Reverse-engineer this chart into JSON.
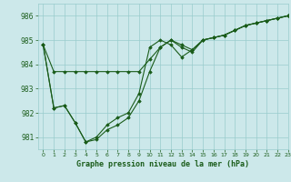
{
  "title": "Graphe pression niveau de la mer (hPa)",
  "background_color": "#cce8ea",
  "grid_color": "#99cccc",
  "line_color": "#1a5c1a",
  "marker_color": "#1a5c1a",
  "xlim": [
    -0.5,
    23
  ],
  "ylim": [
    980.5,
    986.5
  ],
  "yticks": [
    981,
    982,
    983,
    984,
    985,
    986
  ],
  "xticks": [
    0,
    1,
    2,
    3,
    4,
    5,
    6,
    7,
    8,
    9,
    10,
    11,
    12,
    13,
    14,
    15,
    16,
    17,
    18,
    19,
    20,
    21,
    22,
    23
  ],
  "series1_x": [
    0,
    1,
    2,
    3,
    4,
    5,
    6,
    7,
    8,
    9,
    10,
    11,
    12,
    13,
    14,
    15,
    16,
    17,
    18,
    19,
    20,
    21,
    22,
    23
  ],
  "series1_y": [
    984.8,
    983.7,
    983.7,
    983.7,
    983.7,
    983.7,
    983.7,
    983.7,
    983.7,
    983.7,
    984.2,
    984.7,
    985.0,
    984.7,
    984.5,
    985.0,
    985.1,
    985.2,
    985.4,
    985.6,
    985.7,
    985.8,
    985.9,
    986.0
  ],
  "series2_x": [
    0,
    1,
    2,
    3,
    4,
    5,
    6,
    7,
    8,
    9,
    10,
    11,
    12,
    13,
    14,
    15,
    16,
    17,
    18,
    19,
    20,
    21,
    22,
    23
  ],
  "series2_y": [
    984.8,
    982.2,
    982.3,
    981.6,
    980.8,
    980.9,
    981.3,
    981.5,
    981.8,
    982.5,
    983.7,
    984.7,
    985.0,
    984.8,
    984.6,
    985.0,
    985.1,
    985.2,
    985.4,
    985.6,
    985.7,
    985.8,
    985.9,
    986.0
  ],
  "series3_x": [
    0,
    1,
    2,
    3,
    4,
    5,
    6,
    7,
    8,
    9,
    10,
    11,
    12,
    13,
    14,
    15,
    16,
    17,
    18,
    19,
    20,
    21,
    22,
    23
  ],
  "series3_y": [
    984.8,
    982.2,
    982.3,
    981.6,
    980.8,
    981.0,
    981.5,
    981.8,
    982.0,
    982.8,
    984.7,
    985.0,
    984.8,
    984.3,
    984.6,
    985.0,
    985.1,
    985.2,
    985.4,
    985.6,
    985.7,
    985.8,
    985.9,
    986.0
  ]
}
